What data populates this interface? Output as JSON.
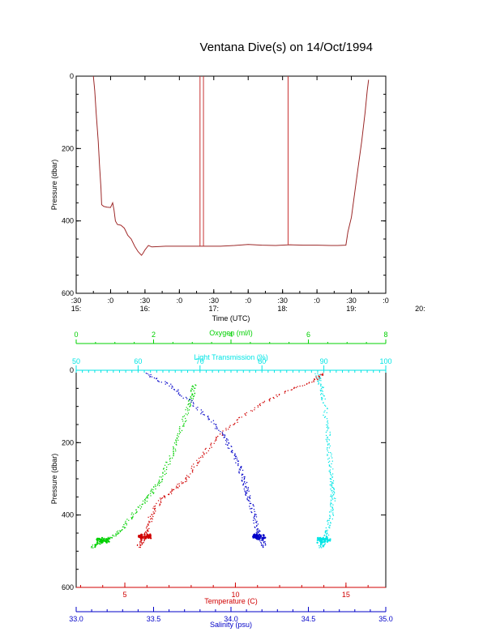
{
  "title": "Ventana Dive(s) on 14/Oct/1994",
  "chart_data": [
    {
      "type": "line",
      "name": "pressure-vs-time",
      "xlabel": "Time (UTC)",
      "ylabel": "Pressure (dbar)",
      "xlim": [
        15.5,
        20.0
      ],
      "ylim": [
        600,
        0
      ],
      "x_tick_minutes": [
        ":30",
        ":0",
        ":30",
        ":0",
        ":30",
        ":0",
        ":30",
        ":0",
        ":30",
        ":0"
      ],
      "x_tick_hours": [
        "15:",
        "16:",
        "17:",
        "18:",
        "19:",
        "20:"
      ],
      "y_ticks": [
        "0",
        "200",
        "400",
        "600"
      ],
      "series": [
        {
          "color": "#c83232",
          "x": [
            15.75,
            15.77,
            15.79,
            15.82,
            15.84,
            15.86,
            15.87,
            15.9,
            15.95,
            16.0,
            16.03,
            16.05,
            16.07,
            16.1,
            16.15,
            16.2,
            16.25,
            16.3,
            16.35,
            16.4,
            16.45,
            16.47,
            16.5,
            16.55,
            16.6,
            16.8,
            17.0,
            17.2,
            17.4,
            17.6,
            17.8,
            18.0,
            18.2,
            18.4,
            18.6,
            18.8,
            19.0,
            19.2,
            19.3,
            19.42,
            19.45,
            19.5,
            19.55,
            19.6,
            19.65,
            19.7,
            19.73,
            19.75
          ],
          "y": [
            0,
            40,
            100,
            180,
            250,
            310,
            355,
            360,
            362,
            363,
            350,
            370,
            400,
            410,
            412,
            420,
            440,
            450,
            470,
            485,
            495,
            490,
            480,
            468,
            472,
            470,
            470,
            470,
            470,
            470,
            468,
            465,
            467,
            468,
            466,
            467,
            467,
            468,
            468,
            467,
            430,
            390,
            320,
            250,
            180,
            100,
            40,
            10
          ]
        }
      ],
      "spikes": [
        {
          "x": 17.3,
          "y_top": 0,
          "y_bottom": 470
        },
        {
          "x": 17.35,
          "y_top": 0,
          "y_bottom": 470
        },
        {
          "x": 18.58,
          "y_top": 0,
          "y_bottom": 465
        }
      ]
    },
    {
      "type": "scatter",
      "name": "property-profiles",
      "ylabel": "Pressure (dbar)",
      "ylim": [
        600,
        0
      ],
      "y_ticks": [
        "0",
        "200",
        "400",
        "600"
      ],
      "axes": {
        "oxygen": {
          "label": "Oxygen (ml/l)",
          "range": [
            0,
            8
          ],
          "ticks": [
            "0",
            "2",
            "4",
            "6",
            "8"
          ],
          "color": "#00d000"
        },
        "light": {
          "label": "Light Transmission (%)",
          "range": [
            50,
            100
          ],
          "ticks": [
            "50",
            "60",
            "70",
            "80",
            "90",
            "100"
          ],
          "color": "#00e5e5"
        },
        "temperature": {
          "label": "Temperature (C)",
          "range": [
            2.8,
            16.8
          ],
          "ticks": [
            "5",
            "10",
            "15"
          ],
          "tick_values": [
            5,
            10,
            15
          ],
          "color": "#d00000"
        },
        "salinity": {
          "label": "Salinity (psu)",
          "range": [
            33.0,
            35.0
          ],
          "ticks": [
            "33.0",
            "33.5",
            "34.0",
            "34.5",
            "35.0"
          ],
          "color": "#0000c8"
        }
      },
      "series": [
        {
          "axis": "oxygen",
          "color": "#00d000",
          "profile_value": [
            3.05,
            3.0,
            2.9,
            2.75,
            2.6,
            2.4,
            2.2,
            2.0,
            1.8,
            1.45,
            1.2,
            0.95,
            0.7,
            0.55,
            0.4
          ],
          "profile_pressure": [
            40,
            70,
            100,
            150,
            200,
            250,
            300,
            330,
            360,
            400,
            440,
            460,
            470,
            480,
            490
          ]
        },
        {
          "axis": "light",
          "color": "#00e5e5",
          "profile_value": [
            89,
            89.5,
            90,
            90.5,
            90.8,
            91.0,
            91.2,
            91.4,
            91.5,
            91.2,
            90.6,
            90.3,
            90.0,
            89.8,
            89.5
          ],
          "profile_pressure": [
            10,
            40,
            80,
            150,
            200,
            250,
            300,
            330,
            360,
            400,
            440,
            460,
            470,
            480,
            490
          ]
        },
        {
          "axis": "temperature",
          "color": "#d00000",
          "profile_value": [
            14.0,
            13.5,
            12.2,
            11.0,
            9.8,
            9.0,
            8.3,
            7.8,
            7.2,
            6.6,
            6.2,
            6.0,
            5.9,
            5.8,
            5.6
          ],
          "profile_pressure": [
            10,
            30,
            60,
            100,
            150,
            200,
            250,
            300,
            330,
            360,
            400,
            440,
            460,
            470,
            490
          ]
        },
        {
          "axis": "salinity",
          "color": "#0000c8",
          "profile_value": [
            33.45,
            33.6,
            33.72,
            33.85,
            33.95,
            34.0,
            34.05,
            34.08,
            34.1,
            34.12,
            34.15,
            34.17,
            34.18,
            34.2,
            34.22
          ],
          "profile_pressure": [
            10,
            40,
            80,
            130,
            180,
            220,
            260,
            300,
            330,
            360,
            400,
            440,
            460,
            470,
            490
          ]
        }
      ]
    }
  ]
}
